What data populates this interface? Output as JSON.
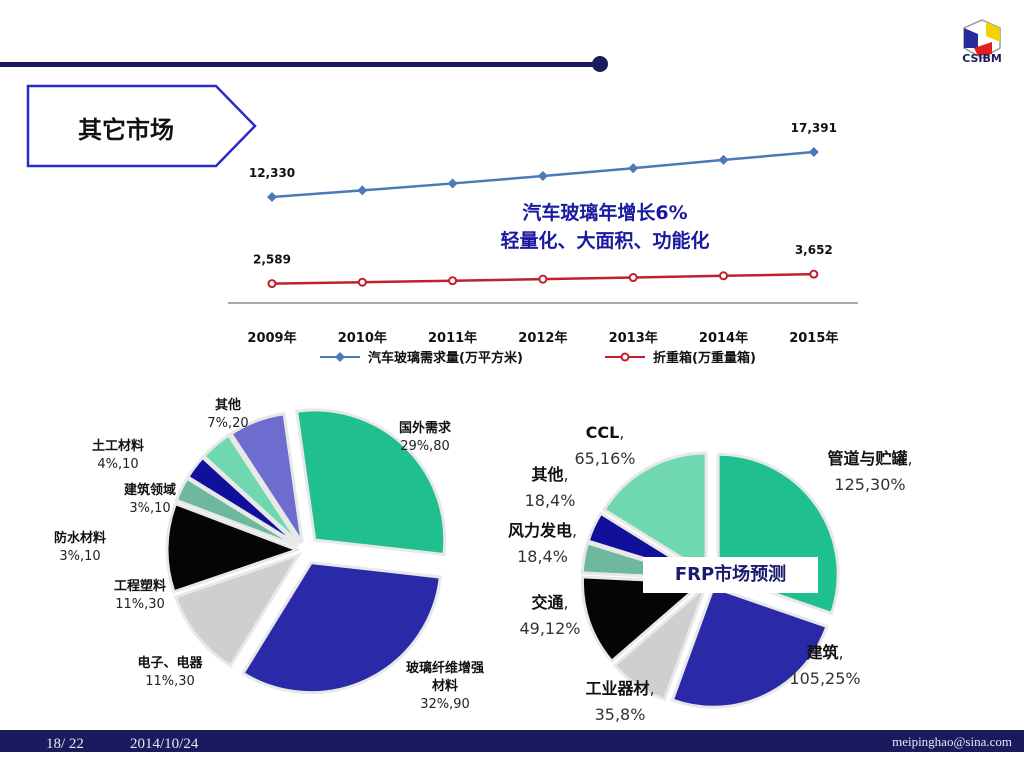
{
  "header": {
    "title": "其它市场",
    "logo_text": "CSIBM"
  },
  "annotation": {
    "line1": "汽车玻璃年增长6%",
    "line2": "轻量化、大面积、功能化"
  },
  "chart_data": [
    {
      "type": "line",
      "categories": [
        "2009年",
        "2010年",
        "2011年",
        "2012年",
        "2013年",
        "2014年",
        "2015年"
      ],
      "series": [
        {
          "name": "汽车玻璃需求量(万平方米)",
          "color": "#4a7ab8",
          "marker": "diamond",
          "values": [
            12330,
            13070,
            13854,
            14685,
            15566,
            16500,
            17391
          ],
          "labels": {
            "0": "12,330",
            "6": "17,391"
          }
        },
        {
          "name": "折重箱(万重量箱)",
          "color": "#c0202a",
          "marker": "circle",
          "values": [
            2589,
            2744,
            2909,
            3084,
            3269,
            3465,
            3652
          ],
          "labels": {
            "0": "2,589",
            "6": "3,652"
          }
        }
      ],
      "legend": "bottom"
    },
    {
      "type": "pie",
      "slices": [
        {
          "name": "国外需求",
          "label": "29%,80",
          "percent": 29,
          "value": 80,
          "color": "#1fbf8f"
        },
        {
          "name": "玻璃纤维增强材料",
          "label": "32%,90",
          "percent": 32,
          "value": 90,
          "color": "#2a2aa8"
        },
        {
          "name": "电子、电器",
          "label": "11%,30",
          "percent": 11,
          "value": 30,
          "color": "#cfcfcf"
        },
        {
          "name": "工程塑料",
          "label": "11%,30",
          "percent": 11,
          "value": 30,
          "color": "#050505"
        },
        {
          "name": "防水材料",
          "label": "3%,10",
          "percent": 3,
          "value": 10,
          "color": "#6fb8a0"
        },
        {
          "name": "建筑领域",
          "label": "3%,10",
          "percent": 3,
          "value": 10,
          "color": "#10109a"
        },
        {
          "name": "土工材料",
          "label": "4%,10",
          "percent": 4,
          "value": 10,
          "color": "#70d8b0"
        },
        {
          "name": "其他",
          "label": "7%,20",
          "percent": 7,
          "value": 20,
          "color": "#6d6dd0"
        }
      ]
    },
    {
      "type": "pie",
      "title": "FRP市场预测",
      "slices": [
        {
          "name": "管道与贮罐",
          "label": "125,30%",
          "value": 125,
          "percent": 30,
          "color": "#1fbf8f"
        },
        {
          "name": "建筑",
          "label": "105,25%",
          "value": 105,
          "percent": 25,
          "color": "#2a2aa8"
        },
        {
          "name": "工业器材",
          "label": "35,8%",
          "value": 35,
          "percent": 8,
          "color": "#cfcfcf"
        },
        {
          "name": "交通",
          "label": "49,12%",
          "value": 49,
          "percent": 12,
          "color": "#050505"
        },
        {
          "name": "风力发电",
          "label": "18,4%",
          "value": 18,
          "percent": 4,
          "color": "#6fb8a0"
        },
        {
          "name": "其他",
          "label": "18,4%",
          "value": 18,
          "percent": 4,
          "color": "#10109a"
        },
        {
          "name": "CCL",
          "label": "65,16%",
          "value": 65,
          "percent": 16,
          "color": "#70d8b0"
        }
      ]
    }
  ],
  "footer": {
    "page": "18/ 22",
    "date": "2014/10/24",
    "email": "meipinghao@sina.com"
  }
}
